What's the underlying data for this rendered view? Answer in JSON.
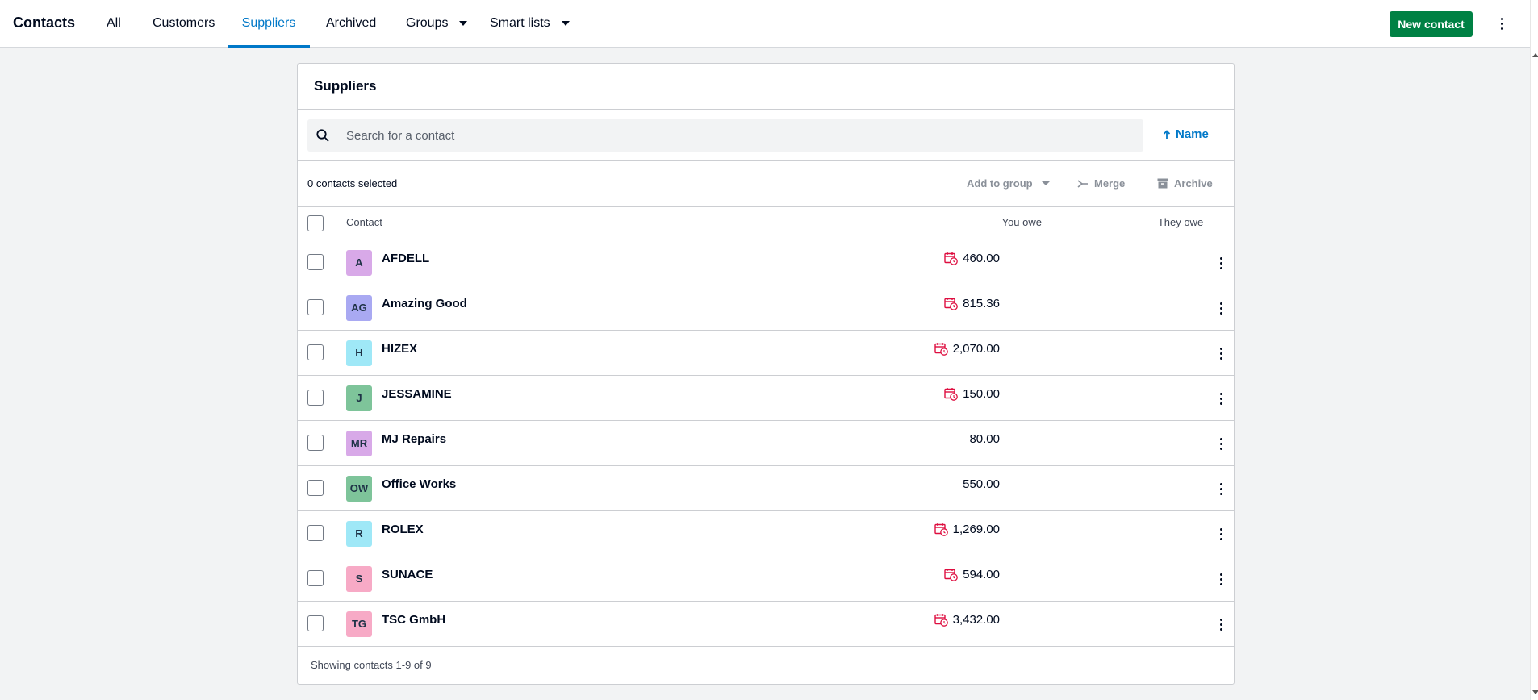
{
  "header": {
    "title": "Contacts",
    "tabs": [
      {
        "label": "All"
      },
      {
        "label": "Customers"
      },
      {
        "label": "Suppliers"
      },
      {
        "label": "Archived"
      },
      {
        "label": "Groups"
      },
      {
        "label": "Smart lists"
      }
    ],
    "active_tab": "Suppliers",
    "new_contact_label": "New contact"
  },
  "panel": {
    "title": "Suppliers",
    "search_placeholder": "Search for a contact",
    "sort_label": "Name",
    "selected_count": "0 contacts selected",
    "actions": {
      "add_to_group": "Add to group",
      "merge": "Merge",
      "archive": "Archive"
    },
    "columns": {
      "contact": "Contact",
      "you_owe": "You owe",
      "they_owe": "They owe"
    },
    "rows": [
      {
        "initials": "A",
        "name": "AFDELL",
        "you_owe": "460.00",
        "overdue": true,
        "color": "#d8a9e8"
      },
      {
        "initials": "AG",
        "name": "Amazing Good",
        "you_owe": "815.36",
        "overdue": true,
        "color": "#a9a9f2"
      },
      {
        "initials": "H",
        "name": "HIZEX",
        "you_owe": "2,070.00",
        "overdue": true,
        "color": "#9fe8f7"
      },
      {
        "initials": "J",
        "name": "JESSAMINE",
        "you_owe": "150.00",
        "overdue": true,
        "color": "#7ec49a"
      },
      {
        "initials": "MR",
        "name": "MJ Repairs",
        "you_owe": "80.00",
        "overdue": false,
        "color": "#d8a9e8"
      },
      {
        "initials": "OW",
        "name": "Office Works",
        "you_owe": "550.00",
        "overdue": false,
        "color": "#7ec49a"
      },
      {
        "initials": "R",
        "name": "ROLEX",
        "you_owe": "1,269.00",
        "overdue": true,
        "color": "#9fe8f7"
      },
      {
        "initials": "S",
        "name": "SUNACE",
        "you_owe": "594.00",
        "overdue": true,
        "color": "#f7aac6"
      },
      {
        "initials": "TG",
        "name": "TSC GmbH",
        "you_owe": "3,432.00",
        "overdue": true,
        "color": "#f7aac6"
      }
    ],
    "footer": "Showing contacts 1-9 of 9"
  }
}
